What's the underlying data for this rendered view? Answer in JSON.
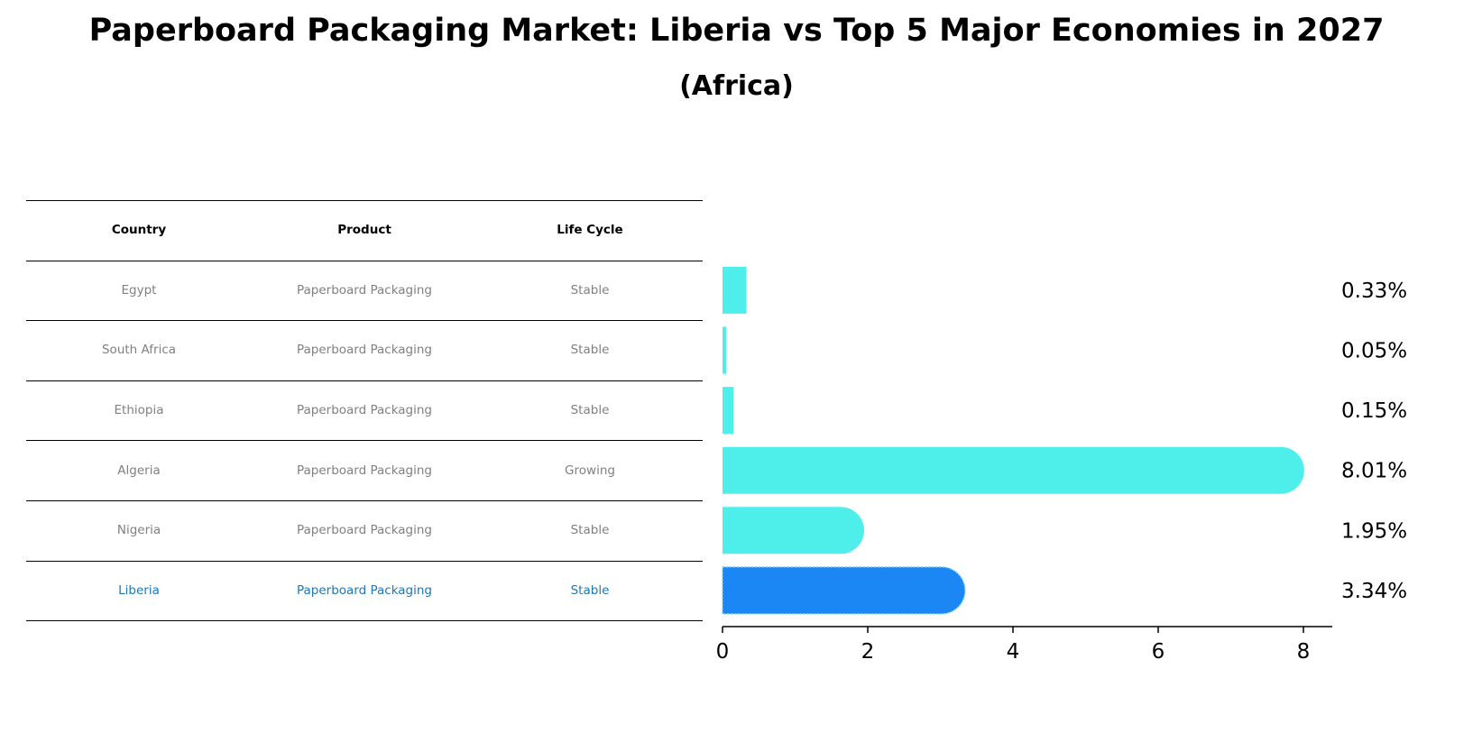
{
  "chart_data": {
    "type": "bar",
    "orientation": "horizontal",
    "title": "Paperboard Packaging Market: Liberia vs Top 5 Major Economies in 2027",
    "subtitle": "(Africa)",
    "categories": [
      "Egypt",
      "South Africa",
      "Ethiopia",
      "Algeria",
      "Nigeria",
      "Liberia"
    ],
    "values": [
      0.33,
      0.05,
      0.15,
      8.01,
      1.95,
      3.34
    ],
    "value_labels": [
      "0.33%",
      "0.05%",
      "0.15%",
      "8.01%",
      "1.95%",
      "3.34%"
    ],
    "xlim": [
      0,
      8.4
    ],
    "xticks": [
      0,
      2,
      4,
      6,
      8
    ],
    "xtick_labels": [
      "0",
      "2",
      "4",
      "6",
      "8"
    ],
    "highlight_index": 5,
    "colors": {
      "bar": "#4eeeea",
      "highlight": "#1a87f5"
    },
    "grid": false
  },
  "table": {
    "headers": [
      "Country",
      "Product",
      "Life Cycle"
    ],
    "rows": [
      [
        "Egypt",
        "Paperboard Packaging",
        "Stable"
      ],
      [
        "South Africa",
        "Paperboard Packaging",
        "Stable"
      ],
      [
        "Ethiopia",
        "Paperboard Packaging",
        "Stable"
      ],
      [
        "Algeria",
        "Paperboard Packaging",
        "Growing"
      ],
      [
        "Nigeria",
        "Paperboard Packaging",
        "Stable"
      ],
      [
        "Liberia",
        "Paperboard Packaging",
        "Stable"
      ]
    ]
  }
}
